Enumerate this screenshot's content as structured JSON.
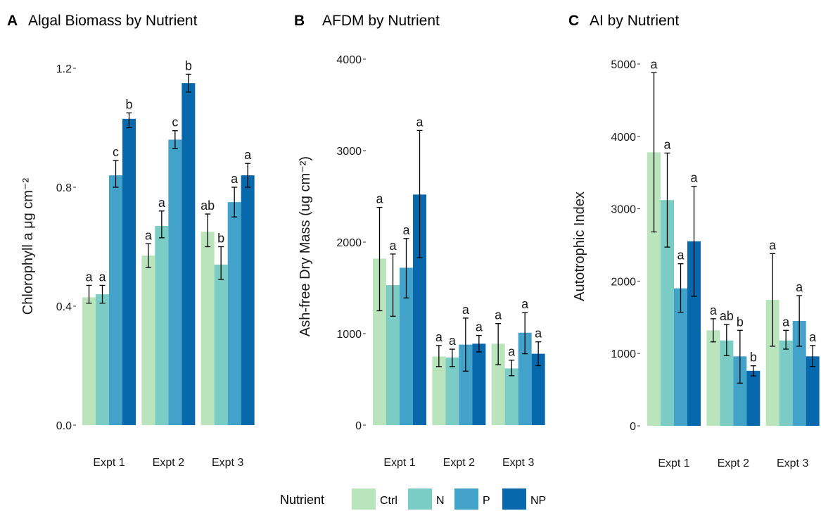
{
  "chart_data": [
    {
      "type": "bar",
      "letter": "A",
      "title": "Algal Biomass by Nutrient",
      "ylabel": "Chlorophyll a μg cm⁻²",
      "ylim": [
        0,
        1.26
      ],
      "yticks": [
        0.0,
        0.4,
        0.8,
        1.2
      ],
      "ytick_labels": [
        "0.0",
        "0.4",
        "0.8",
        "1.2"
      ],
      "categories": [
        "Expt 1",
        "Expt 2",
        "Expt 3"
      ],
      "series": [
        {
          "name": "Ctrl",
          "values": [
            0.43,
            0.57,
            0.65
          ],
          "err_low": [
            0.41,
            0.53,
            0.6
          ],
          "err_high": [
            0.47,
            0.61,
            0.71
          ],
          "labels": [
            "a",
            "a",
            "ab"
          ]
        },
        {
          "name": "N",
          "values": [
            0.44,
            0.67,
            0.54
          ],
          "err_low": [
            0.41,
            0.63,
            0.49
          ],
          "err_high": [
            0.47,
            0.72,
            0.6
          ],
          "labels": [
            "a",
            "a",
            "b"
          ]
        },
        {
          "name": "P",
          "values": [
            0.84,
            0.96,
            0.75
          ],
          "err_low": [
            0.8,
            0.93,
            0.7
          ],
          "err_high": [
            0.89,
            0.99,
            0.8
          ],
          "labels": [
            "c",
            "c",
            "a"
          ]
        },
        {
          "name": "NP",
          "values": [
            1.03,
            1.15,
            0.84
          ],
          "err_low": [
            1.0,
            1.12,
            0.8
          ],
          "err_high": [
            1.05,
            1.18,
            0.88
          ],
          "labels": [
            "b",
            "b",
            "a"
          ]
        }
      ]
    },
    {
      "type": "bar",
      "letter": "B",
      "title": "AFDM by Nutrient",
      "ylabel": "Ash-free Dry Mass (ug cm⁻²)",
      "ylim": [
        0,
        4000
      ],
      "yticks": [
        0,
        1000,
        2000,
        3000,
        4000
      ],
      "ytick_labels": [
        "0",
        "1000",
        "2000",
        "3000",
        "4000"
      ],
      "categories": [
        "Expt 1",
        "Expt 2",
        "Expt 3"
      ],
      "series": [
        {
          "name": "Ctrl",
          "values": [
            1820,
            750,
            890
          ],
          "err_low": [
            1250,
            640,
            660
          ],
          "err_high": [
            2380,
            870,
            1110
          ],
          "labels": [
            "a",
            "a",
            "a"
          ]
        },
        {
          "name": "N",
          "values": [
            1530,
            740,
            620
          ],
          "err_low": [
            1190,
            640,
            540
          ],
          "err_high": [
            1870,
            830,
            710
          ],
          "labels": [
            "a",
            "a",
            "a"
          ]
        },
        {
          "name": "P",
          "values": [
            1720,
            880,
            1010
          ],
          "err_low": [
            1390,
            590,
            780
          ],
          "err_high": [
            2040,
            1170,
            1230
          ],
          "labels": [
            "a",
            "a",
            "a"
          ]
        },
        {
          "name": "NP",
          "values": [
            2520,
            890,
            780
          ],
          "err_low": [
            1830,
            800,
            650
          ],
          "err_high": [
            3220,
            980,
            910
          ],
          "labels": [
            "a",
            "a",
            "a"
          ]
        }
      ]
    },
    {
      "type": "bar",
      "letter": "C",
      "title": "AI by Nutrient",
      "ylabel": "Autotrophic Index",
      "ylim": [
        0,
        5150
      ],
      "yticks": [
        0,
        1000,
        2000,
        3000,
        4000,
        5000
      ],
      "ytick_labels": [
        "0",
        "1000",
        "2000",
        "3000",
        "4000",
        "5000"
      ],
      "categories": [
        "Expt 1",
        "Expt 2",
        "Expt 3"
      ],
      "series": [
        {
          "name": "Ctrl",
          "values": [
            3780,
            1320,
            1740
          ],
          "err_low": [
            2680,
            1160,
            1100
          ],
          "err_high": [
            4880,
            1480,
            2380
          ],
          "labels": [
            "a",
            "a",
            "a"
          ]
        },
        {
          "name": "N",
          "values": [
            3120,
            1180,
            1180
          ],
          "err_low": [
            2470,
            970,
            1060
          ],
          "err_high": [
            3770,
            1400,
            1320
          ],
          "labels": [
            "a",
            "ab",
            "a"
          ]
        },
        {
          "name": "P",
          "values": [
            1900,
            960,
            1450
          ],
          "err_low": [
            1570,
            590,
            1100
          ],
          "err_high": [
            2240,
            1320,
            1800
          ],
          "labels": [
            "a",
            "b",
            "a"
          ]
        },
        {
          "name": "NP",
          "values": [
            2550,
            760,
            960
          ],
          "err_low": [
            1790,
            690,
            820
          ],
          "err_high": [
            3310,
            830,
            1110
          ],
          "labels": [
            "a",
            "b",
            "a"
          ]
        }
      ]
    }
  ],
  "legend": {
    "title": "Nutrient",
    "items": [
      {
        "label": "Ctrl",
        "color": "#bae4bc"
      },
      {
        "label": "N",
        "color": "#7bccc4"
      },
      {
        "label": "P",
        "color": "#43a2ca"
      },
      {
        "label": "NP",
        "color": "#0868ac"
      }
    ]
  }
}
